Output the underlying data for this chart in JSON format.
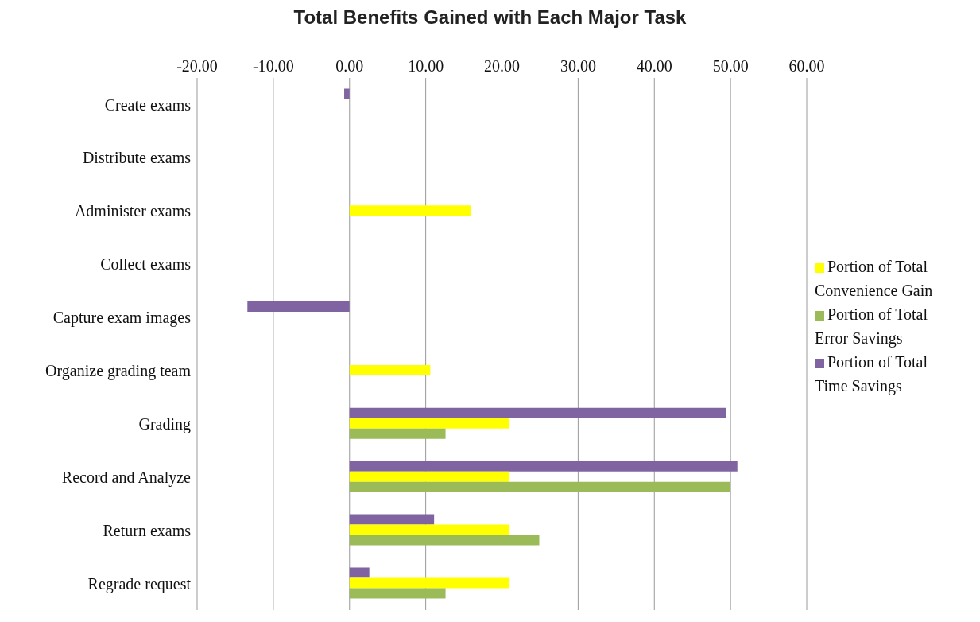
{
  "chart_data": {
    "type": "bar",
    "orientation": "horizontal",
    "title": "Total Benefits Gained with Each Major Task",
    "categories": [
      "Create exams",
      "Distribute exams",
      "Administer exams",
      "Collect exams",
      "Capture exam images",
      "Organize grading team",
      "Grading",
      "Record and Analyze",
      "Return exams",
      "Regrade request"
    ],
    "series": [
      {
        "name": "Portion of Total Time Savings",
        "color": "#8064a2",
        "values": [
          -0.7,
          null,
          null,
          null,
          -13.4,
          null,
          49.4,
          50.9,
          11.1,
          2.6
        ]
      },
      {
        "name": "Portion of Total Convenience Gain",
        "color": "#ffff00",
        "values": [
          null,
          null,
          15.9,
          null,
          null,
          10.6,
          21.0,
          21.0,
          21.0,
          21.0
        ]
      },
      {
        "name": "Portion of Total Error Savings",
        "color": "#9bbb59",
        "values": [
          null,
          null,
          null,
          null,
          null,
          null,
          12.6,
          49.9,
          24.9,
          12.6
        ]
      }
    ],
    "xlim": [
      -20,
      60
    ],
    "xticks": [
      {
        "value": -20,
        "label": "-20.00"
      },
      {
        "value": -10,
        "label": "-10.00"
      },
      {
        "value": 0,
        "label": "0.00"
      },
      {
        "value": 10,
        "label": "10.00"
      },
      {
        "value": 20,
        "label": "20.00"
      },
      {
        "value": 30,
        "label": "30.00"
      },
      {
        "value": 40,
        "label": "40.00"
      },
      {
        "value": 50,
        "label": "50.00"
      },
      {
        "value": 60,
        "label": "60.00"
      }
    ],
    "grid": "x",
    "legend": "right"
  }
}
